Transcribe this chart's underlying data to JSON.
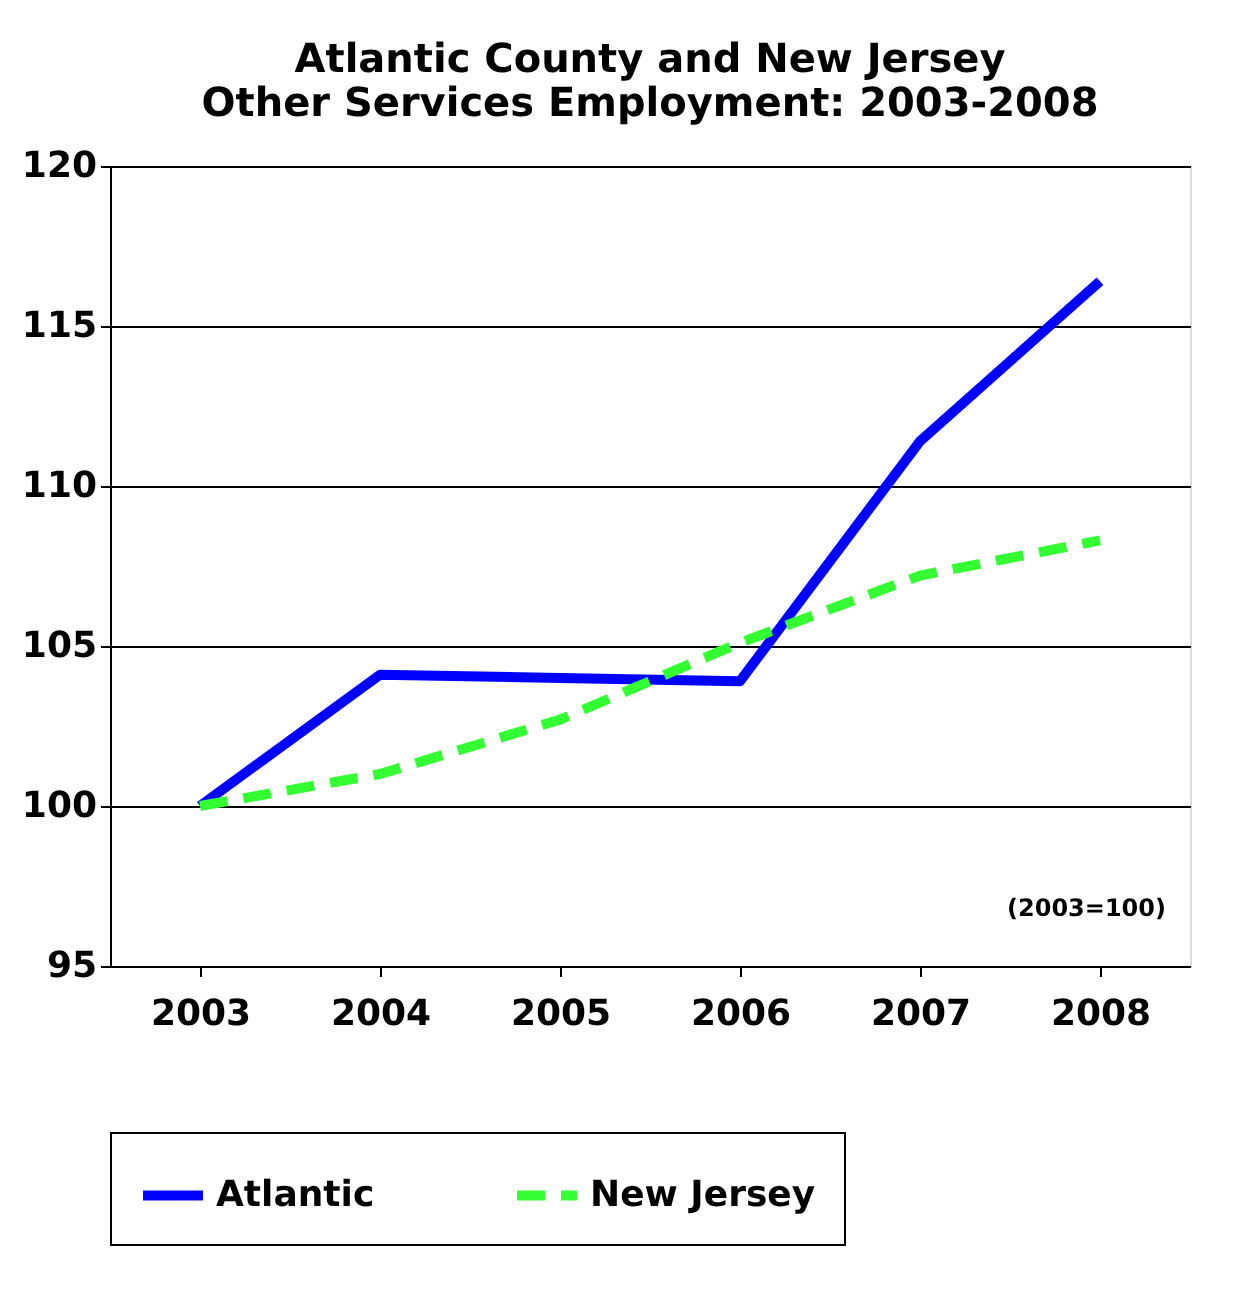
{
  "chart_data": {
    "type": "line",
    "title": "Atlantic County and New Jersey\nOther Services Employment: 2003-2008",
    "categories": [
      "2003",
      "2004",
      "2005",
      "2006",
      "2007",
      "2008"
    ],
    "series": [
      {
        "name": "Atlantic",
        "color": "#0000ff",
        "line_style": "solid",
        "values": [
          100,
          104.1,
          104.0,
          103.9,
          111.4,
          116.4
        ]
      },
      {
        "name": "New Jersey",
        "color": "#33ff33",
        "line_style": "dashed",
        "values": [
          100,
          101.0,
          102.7,
          105.1,
          107.2,
          108.3
        ]
      }
    ],
    "ylim": [
      95,
      120
    ],
    "yticks": [
      95,
      100,
      105,
      110,
      115,
      120
    ],
    "grid": "y",
    "legend": "bottom",
    "marker": "none",
    "annotations": [
      "(2003=100)"
    ]
  }
}
